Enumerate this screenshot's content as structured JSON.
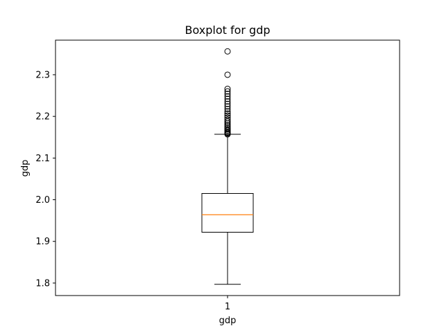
{
  "chart_data": {
    "type": "boxplot",
    "title": "Boxplot for gdp",
    "xlabel": "gdp",
    "ylabel": "gdp",
    "categories": [
      "1"
    ],
    "ylim": [
      1.77,
      2.383
    ],
    "yticks": [
      1.8,
      1.9,
      2.0,
      2.1,
      2.2,
      2.3
    ],
    "ytick_labels": [
      "1.8",
      "1.9",
      "2.0",
      "2.1",
      "2.2",
      "2.3"
    ],
    "grid": false,
    "series": [
      {
        "whisker_low": 1.797,
        "q1": 1.922,
        "median": 1.964,
        "q3": 2.015,
        "whisker_high": 2.157,
        "outliers": [
          2.157,
          2.159,
          2.161,
          2.163,
          2.166,
          2.169,
          2.172,
          2.176,
          2.18,
          2.184,
          2.188,
          2.192,
          2.197,
          2.202,
          2.207,
          2.212,
          2.218,
          2.224,
          2.23,
          2.236,
          2.242,
          2.248,
          2.254,
          2.26,
          2.266,
          2.3,
          2.356
        ]
      }
    ],
    "colors": {
      "box": "#000000",
      "median": "#ff7f0e",
      "outlier_edge": "#000000"
    }
  }
}
